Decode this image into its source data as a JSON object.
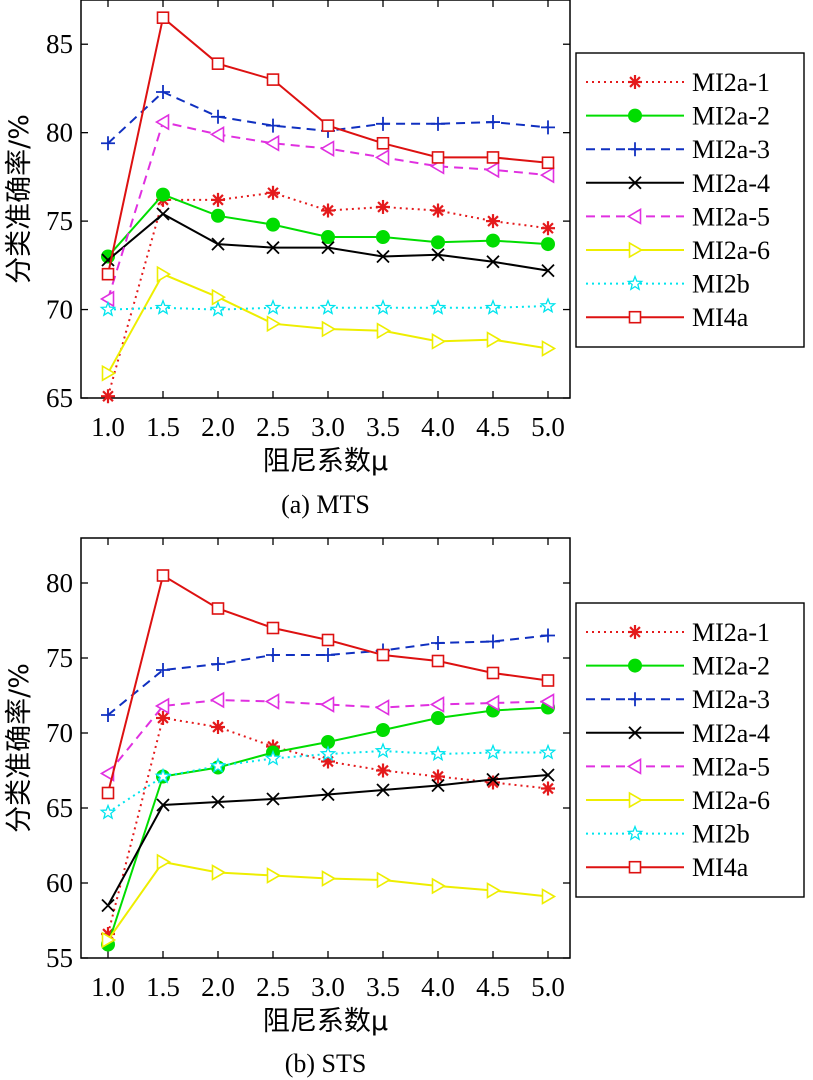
{
  "chart_data": [
    {
      "type": "line",
      "caption": "(a) MTS",
      "xlabel": "阻尼系数μ",
      "ylabel": "分类准确率/%",
      "categories": [
        "1.0",
        "1.5",
        "2.0",
        "2.5",
        "3.0",
        "3.5",
        "4.0",
        "4.5",
        "5.0"
      ],
      "yticks": [
        65,
        70,
        75,
        80,
        85
      ],
      "ylim": [
        65,
        87.5
      ],
      "legend_position": "right",
      "series": [
        {
          "name": "MI2a-1",
          "color": "#e41a1c",
          "dash": "dotted",
          "marker": "asterisk",
          "values": [
            65.1,
            76.2,
            76.2,
            76.6,
            75.6,
            75.8,
            75.6,
            75.0,
            74.6
          ]
        },
        {
          "name": "MI2a-2",
          "color": "#00dd00",
          "dash": "solid",
          "marker": "filled-circle",
          "values": [
            73.0,
            76.5,
            75.3,
            74.8,
            74.1,
            74.1,
            73.8,
            73.9,
            73.7
          ]
        },
        {
          "name": "MI2a-3",
          "color": "#1030c0",
          "dash": "dashed",
          "marker": "plus",
          "values": [
            79.4,
            82.3,
            80.9,
            80.4,
            80.1,
            80.5,
            80.5,
            80.6,
            80.3
          ]
        },
        {
          "name": "MI2a-4",
          "color": "#000000",
          "dash": "solid",
          "marker": "x",
          "values": [
            72.8,
            75.4,
            73.7,
            73.5,
            73.5,
            73.0,
            73.1,
            72.7,
            72.2
          ]
        },
        {
          "name": "MI2a-5",
          "color": "#e030e0",
          "dash": "dashed",
          "marker": "triangle-left",
          "values": [
            70.6,
            80.6,
            79.9,
            79.4,
            79.1,
            78.6,
            78.1,
            77.9,
            77.6
          ]
        },
        {
          "name": "MI2a-6",
          "color": "#eeee00",
          "dash": "solid",
          "marker": "triangle-right",
          "values": [
            66.4,
            72.0,
            70.7,
            69.2,
            68.9,
            68.8,
            68.2,
            68.3,
            67.8
          ]
        },
        {
          "name": "MI2b",
          "color": "#00e5ee",
          "dash": "dotted",
          "marker": "star",
          "values": [
            70.0,
            70.1,
            70.0,
            70.1,
            70.1,
            70.1,
            70.1,
            70.1,
            70.2
          ]
        },
        {
          "name": "MI4a",
          "color": "#dd1111",
          "dash": "solid",
          "marker": "square",
          "values": [
            72.0,
            86.5,
            83.9,
            83.0,
            80.4,
            79.4,
            78.6,
            78.6,
            78.3
          ]
        }
      ]
    },
    {
      "type": "line",
      "caption": "(b) STS",
      "xlabel": "阻尼系数μ",
      "ylabel": "分类准确率/%",
      "categories": [
        "1.0",
        "1.5",
        "2.0",
        "2.5",
        "3.0",
        "3.5",
        "4.0",
        "4.5",
        "5.0"
      ],
      "yticks": [
        55,
        60,
        65,
        70,
        75,
        80
      ],
      "ylim": [
        55,
        83
      ],
      "legend_position": "right",
      "series": [
        {
          "name": "MI2a-1",
          "color": "#e41a1c",
          "dash": "dotted",
          "marker": "asterisk",
          "values": [
            56.6,
            71.0,
            70.4,
            69.1,
            68.1,
            67.5,
            67.1,
            66.7,
            66.3
          ]
        },
        {
          "name": "MI2a-2",
          "color": "#00dd00",
          "dash": "solid",
          "marker": "filled-circle",
          "values": [
            55.9,
            67.1,
            67.7,
            68.7,
            69.4,
            70.2,
            71.0,
            71.5,
            71.7
          ]
        },
        {
          "name": "MI2a-3",
          "color": "#1030c0",
          "dash": "dashed",
          "marker": "plus",
          "values": [
            71.2,
            74.2,
            74.6,
            75.2,
            75.2,
            75.5,
            76.0,
            76.1,
            76.5
          ]
        },
        {
          "name": "MI2a-4",
          "color": "#000000",
          "dash": "solid",
          "marker": "x",
          "values": [
            58.5,
            65.2,
            65.4,
            65.6,
            65.9,
            66.2,
            66.5,
            66.9,
            67.2
          ]
        },
        {
          "name": "MI2a-5",
          "color": "#e030e0",
          "dash": "dashed",
          "marker": "triangle-left",
          "values": [
            67.3,
            71.8,
            72.2,
            72.1,
            71.9,
            71.7,
            71.9,
            72.0,
            72.1
          ]
        },
        {
          "name": "MI2a-6",
          "color": "#eeee00",
          "dash": "solid",
          "marker": "triangle-right",
          "values": [
            56.2,
            61.4,
            60.7,
            60.5,
            60.3,
            60.2,
            59.8,
            59.5,
            59.1
          ]
        },
        {
          "name": "MI2b",
          "color": "#00e5ee",
          "dash": "dotted",
          "marker": "star",
          "values": [
            64.7,
            67.1,
            67.8,
            68.3,
            68.6,
            68.8,
            68.6,
            68.7,
            68.7
          ]
        },
        {
          "name": "MI4a",
          "color": "#dd1111",
          "dash": "solid",
          "marker": "square",
          "values": [
            66.0,
            80.5,
            78.3,
            77.0,
            76.2,
            75.2,
            74.8,
            74.0,
            73.5
          ]
        }
      ]
    }
  ]
}
